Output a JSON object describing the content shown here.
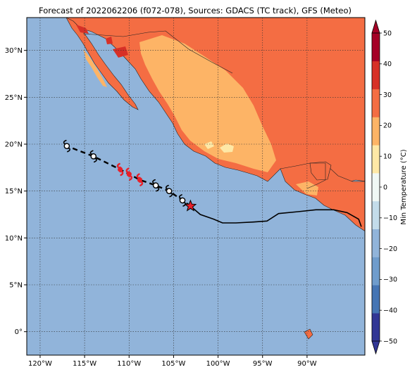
{
  "title": "Forecast of 2022062206 (f072-078), Sources: GDACS (TC track), GFS (Meteo)",
  "map": {
    "ocean_color": "#91b4da",
    "lon_range": [
      -121.5,
      -83.5
    ],
    "lat_range": [
      -2.5,
      33.5
    ],
    "lon_ticks": [
      {
        "value": -120,
        "label": "120°W"
      },
      {
        "value": -115,
        "label": "115°W"
      },
      {
        "value": -110,
        "label": "110°W"
      },
      {
        "value": -105,
        "label": "105°W"
      },
      {
        "value": -100,
        "label": "100°W"
      },
      {
        "value": -95,
        "label": "95°W"
      },
      {
        "value": -90,
        "label": "90°W"
      }
    ],
    "lat_ticks": [
      {
        "value": 30,
        "label": "30°N"
      },
      {
        "value": 25,
        "label": "25°N"
      },
      {
        "value": 20,
        "label": "20°N"
      },
      {
        "value": 15,
        "label": "15°N"
      },
      {
        "value": 10,
        "label": "10°N"
      },
      {
        "value": 5,
        "label": "5°N"
      },
      {
        "value": 0,
        "label": "0°"
      }
    ]
  },
  "colorbar": {
    "label": "Min Temperature (°C)",
    "range": [
      -50,
      50
    ],
    "ticks": [
      "50",
      "40",
      "30",
      "20",
      "10",
      "0",
      "−10",
      "−20",
      "−30",
      "−40",
      "−50"
    ],
    "colors": [
      "#313695",
      "#4575b4",
      "#6f9ccc",
      "#91b4da",
      "#c3dcea",
      "#f0f8f5",
      "#fee8a6",
      "#fdb466",
      "#f46d43",
      "#d73027",
      "#a50026"
    ]
  },
  "track": {
    "observed": [
      {
        "lon": -83.9,
        "lat": 11.2
      },
      {
        "lon": -84.2,
        "lat": 12.0
      },
      {
        "lon": -85.5,
        "lat": 12.7
      },
      {
        "lon": -87.0,
        "lat": 13.0
      },
      {
        "lon": -89.0,
        "lat": 13.0
      },
      {
        "lon": -91.0,
        "lat": 12.8
      },
      {
        "lon": -93.2,
        "lat": 12.6
      },
      {
        "lon": -94.5,
        "lat": 11.8
      },
      {
        "lon": -96.0,
        "lat": 11.7
      },
      {
        "lon": -98.0,
        "lat": 11.6
      },
      {
        "lon": -99.5,
        "lat": 11.6
      },
      {
        "lon": -100.5,
        "lat": 12.0
      },
      {
        "lon": -102.0,
        "lat": 12.5
      },
      {
        "lon": -103.1,
        "lat": 13.4
      }
    ],
    "current": {
      "lon": -103.1,
      "lat": 13.4
    },
    "forecast": [
      {
        "lon": -104.0,
        "lat": 14.0,
        "category": "storm"
      },
      {
        "lon": -105.5,
        "lat": 15.0,
        "category": "storm"
      },
      {
        "lon": -107.0,
        "lat": 15.6,
        "category": "storm"
      },
      {
        "lon": -108.8,
        "lat": 16.2,
        "category": "hurricane"
      },
      {
        "lon": -110.0,
        "lat": 16.8,
        "category": "hurricane"
      },
      {
        "lon": -111.0,
        "lat": 17.3,
        "category": "hurricane"
      },
      {
        "lon": -114.0,
        "lat": 18.7,
        "category": "storm"
      },
      {
        "lon": -117.0,
        "lat": 19.8,
        "category": "storm"
      }
    ]
  }
}
